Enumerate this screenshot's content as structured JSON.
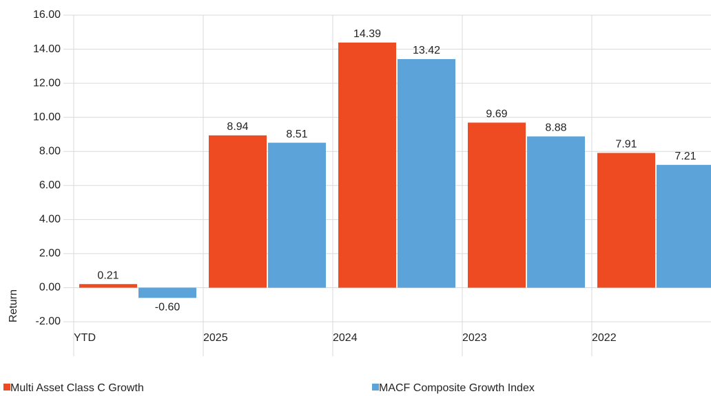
{
  "chart_data": {
    "type": "bar",
    "y_label": "Return",
    "categories": [
      "YTD",
      "2025",
      "2024",
      "2023",
      "2022"
    ],
    "series": [
      {
        "name": "Multi Asset Class C Growth",
        "color": "#ee4b22",
        "values": [
          0.21,
          8.94,
          14.39,
          9.69,
          7.91
        ],
        "value_labels": [
          "0.21",
          "8.94",
          "14.39",
          "9.69",
          "7.91"
        ]
      },
      {
        "name": "MACF Composite Growth Index",
        "color": "#5ba3d9",
        "values": [
          -0.6,
          8.51,
          13.42,
          8.88,
          7.21
        ],
        "value_labels": [
          "-0.60",
          "8.51",
          "13.42",
          "8.88",
          "7.21"
        ]
      }
    ],
    "ylim": [
      -2,
      16
    ],
    "yticks": [
      {
        "value": -2,
        "label": "-2.00"
      },
      {
        "value": 0,
        "label": "0.00"
      },
      {
        "value": 2,
        "label": "2.00"
      },
      {
        "value": 4,
        "label": "4.00"
      },
      {
        "value": 6,
        "label": "6.00"
      },
      {
        "value": 8,
        "label": "8.00"
      },
      {
        "value": 10,
        "label": "10.00"
      },
      {
        "value": 12,
        "label": "12.00"
      },
      {
        "value": 14,
        "label": "14.00"
      },
      {
        "value": 16,
        "label": "16.00"
      }
    ],
    "grid": true
  }
}
